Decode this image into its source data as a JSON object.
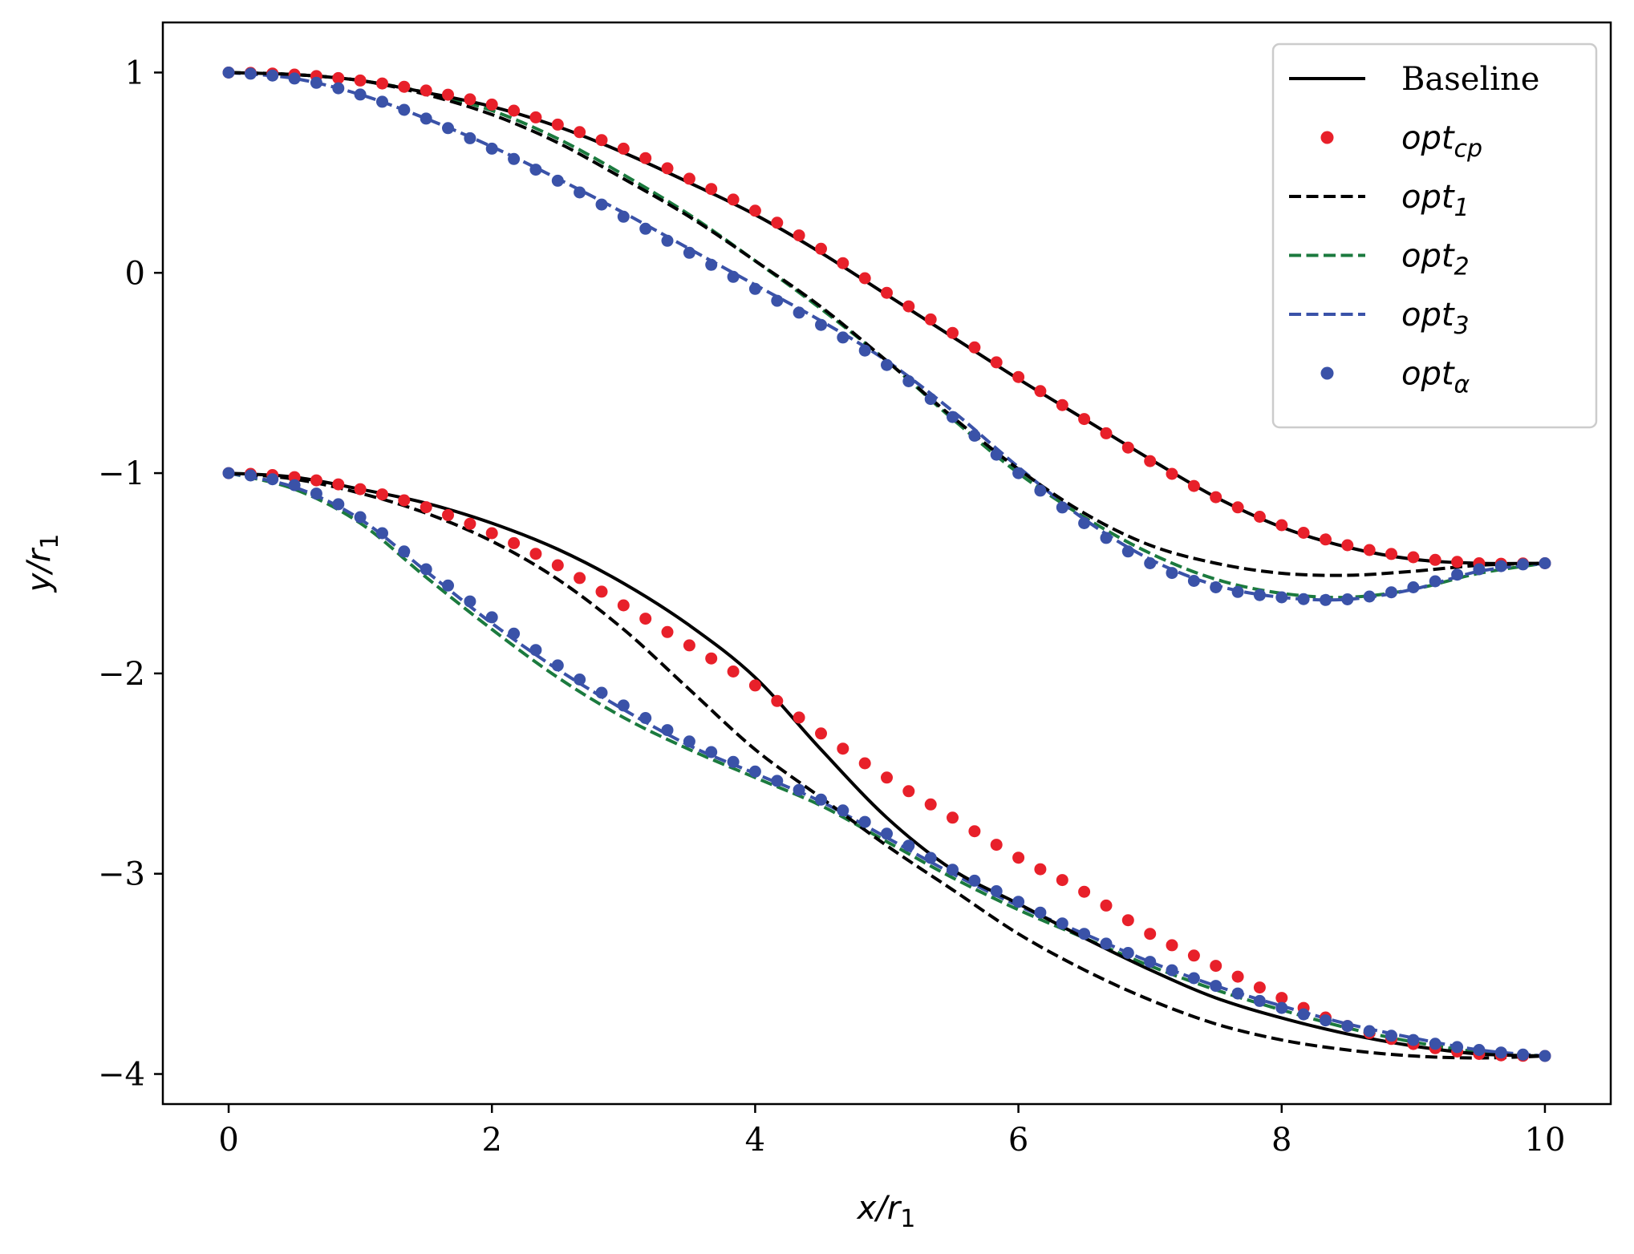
{
  "chart_data": {
    "type": "line",
    "title": "",
    "xlabel": "x/r",
    "xlabel_sub": "1",
    "ylabel": "y/r",
    "ylabel_sub": "1",
    "xlim": [
      -0.5,
      10.5
    ],
    "ylim": [
      -4.15,
      1.25
    ],
    "xticks": [
      0,
      2,
      4,
      6,
      8,
      10
    ],
    "xtick_labels": [
      "0",
      "2",
      "4",
      "6",
      "8",
      "10"
    ],
    "yticks": [
      1,
      0,
      -1,
      -2,
      -3,
      -4
    ],
    "ytick_labels": [
      "1",
      "0",
      "−1",
      "−2",
      "−3",
      "−4"
    ],
    "grid": false,
    "legend_position": "top-right",
    "colors": {
      "baseline": "#000000",
      "opt_cp": "#e8202a",
      "opt1": "#000000",
      "opt2": "#1b7a3e",
      "opt3": "#3a52a8",
      "opt_alpha": "#3a52a8"
    },
    "series": [
      {
        "key": "baseline",
        "name": "Baseline",
        "style": "solid",
        "label_font": "serif",
        "upper": {
          "x": [
            0,
            0.5,
            1,
            1.5,
            2,
            2.5,
            3,
            3.5,
            4,
            4.5,
            5,
            5.5,
            6,
            6.5,
            7,
            7.5,
            8,
            8.5,
            9,
            9.5,
            10
          ],
          "y": [
            1,
            0.99,
            0.96,
            0.9,
            0.83,
            0.73,
            0.6,
            0.45,
            0.29,
            0.1,
            -0.11,
            -0.32,
            -0.53,
            -0.73,
            -0.93,
            -1.12,
            -1.27,
            -1.37,
            -1.43,
            -1.45,
            -1.45
          ]
        },
        "lower": {
          "x": [
            0,
            0.5,
            1,
            1.5,
            2,
            2.5,
            3,
            3.5,
            4,
            4.5,
            5,
            5.5,
            6,
            6.5,
            7,
            7.5,
            8,
            8.5,
            9,
            9.5,
            10
          ],
          "y": [
            -1,
            -1.02,
            -1.08,
            -1.15,
            -1.25,
            -1.38,
            -1.55,
            -1.76,
            -2.02,
            -2.38,
            -2.72,
            -2.98,
            -3.15,
            -3.32,
            -3.48,
            -3.62,
            -3.72,
            -3.8,
            -3.86,
            -3.9,
            -3.91
          ]
        }
      },
      {
        "key": "opt_cp",
        "name": "opt",
        "sub": "cp",
        "style": "dots",
        "label_font": "math",
        "upper": {
          "x": [
            0,
            0.5,
            1,
            1.5,
            2,
            2.5,
            3,
            3.5,
            4,
            4.5,
            5,
            5.5,
            6,
            6.5,
            7,
            7.5,
            8,
            8.5,
            9,
            9.5,
            10
          ],
          "y": [
            1,
            0.99,
            0.96,
            0.91,
            0.84,
            0.74,
            0.62,
            0.47,
            0.31,
            0.12,
            -0.1,
            -0.3,
            -0.52,
            -0.73,
            -0.94,
            -1.12,
            -1.26,
            -1.36,
            -1.42,
            -1.45,
            -1.45
          ]
        },
        "lower": {
          "x": [
            0,
            0.5,
            1,
            1.5,
            2,
            2.5,
            3,
            3.5,
            4,
            4.5,
            5,
            5.5,
            6,
            6.5,
            7,
            7.5,
            8,
            8.5,
            9,
            9.5,
            10
          ],
          "y": [
            -1,
            -1.02,
            -1.08,
            -1.17,
            -1.3,
            -1.46,
            -1.66,
            -1.86,
            -2.06,
            -2.3,
            -2.52,
            -2.72,
            -2.92,
            -3.09,
            -3.3,
            -3.46,
            -3.62,
            -3.76,
            -3.85,
            -3.9,
            -3.91
          ]
        }
      },
      {
        "key": "opt1",
        "name": "opt",
        "sub": "1",
        "style": "dashed",
        "label_font": "math",
        "upper": {
          "x": [
            0,
            0.5,
            1,
            1.5,
            2,
            2.5,
            3,
            3.5,
            4,
            4.5,
            5,
            5.5,
            6,
            6.5,
            7,
            7.5,
            8,
            8.5,
            9,
            9.5,
            10
          ],
          "y": [
            1,
            0.99,
            0.96,
            0.89,
            0.79,
            0.65,
            0.47,
            0.28,
            0.06,
            -0.17,
            -0.44,
            -0.72,
            -0.98,
            -1.2,
            -1.36,
            -1.45,
            -1.5,
            -1.51,
            -1.49,
            -1.46,
            -1.45
          ]
        },
        "lower": {
          "x": [
            0,
            0.5,
            1,
            1.5,
            2,
            2.5,
            3,
            3.5,
            4,
            4.5,
            5,
            5.5,
            6,
            6.5,
            7,
            7.5,
            8,
            8.5,
            9,
            9.5,
            10
          ],
          "y": [
            -1,
            -1.03,
            -1.1,
            -1.2,
            -1.34,
            -1.53,
            -1.78,
            -2.08,
            -2.38,
            -2.62,
            -2.86,
            -3.08,
            -3.3,
            -3.48,
            -3.63,
            -3.75,
            -3.83,
            -3.88,
            -3.91,
            -3.92,
            -3.91
          ]
        }
      },
      {
        "key": "opt2",
        "name": "opt",
        "sub": "2",
        "style": "dashed",
        "label_font": "math",
        "upper": {
          "x": [
            0,
            0.5,
            1,
            1.5,
            2,
            2.5,
            3,
            3.5,
            4,
            4.5,
            5,
            5.5,
            6,
            6.5,
            7,
            7.5,
            8,
            8.5,
            9,
            9.5,
            10
          ],
          "y": [
            1,
            0.99,
            0.96,
            0.9,
            0.81,
            0.67,
            0.49,
            0.29,
            0.06,
            -0.18,
            -0.44,
            -0.73,
            -1.0,
            -1.22,
            -1.4,
            -1.53,
            -1.6,
            -1.62,
            -1.58,
            -1.5,
            -1.45
          ]
        },
        "lower": {
          "x": [
            0,
            0.5,
            1,
            1.5,
            2,
            2.5,
            3,
            3.5,
            4,
            4.5,
            5,
            5.5,
            6,
            6.5,
            7,
            7.5,
            8,
            8.5,
            9,
            9.5,
            10
          ],
          "y": [
            -1,
            -1.08,
            -1.25,
            -1.52,
            -1.78,
            -2.02,
            -2.22,
            -2.38,
            -2.52,
            -2.66,
            -2.84,
            -3.02,
            -3.18,
            -3.32,
            -3.46,
            -3.58,
            -3.68,
            -3.77,
            -3.84,
            -3.89,
            -3.91
          ]
        }
      },
      {
        "key": "opt3",
        "name": "opt",
        "sub": "3",
        "style": "dashed",
        "label_font": "math",
        "upper": {
          "x": [
            0,
            0.5,
            1,
            1.5,
            2,
            2.5,
            3,
            3.5,
            4,
            4.5,
            5,
            5.5,
            6,
            6.5,
            7,
            7.5,
            8,
            8.5,
            9,
            9.5,
            10
          ],
          "y": [
            1,
            0.97,
            0.89,
            0.77,
            0.63,
            0.47,
            0.3,
            0.12,
            -0.06,
            -0.24,
            -0.44,
            -0.69,
            -0.97,
            -1.23,
            -1.43,
            -1.56,
            -1.62,
            -1.63,
            -1.58,
            -1.49,
            -1.45
          ]
        },
        "lower": {
          "x": [
            0,
            0.5,
            1,
            1.5,
            2,
            2.5,
            3,
            3.5,
            4,
            4.5,
            5,
            5.5,
            6,
            6.5,
            7,
            7.5,
            8,
            8.5,
            9,
            9.5,
            10
          ],
          "y": [
            -1,
            -1.07,
            -1.23,
            -1.49,
            -1.75,
            -1.98,
            -2.18,
            -2.36,
            -2.5,
            -2.64,
            -2.82,
            -3.0,
            -3.16,
            -3.3,
            -3.44,
            -3.56,
            -3.66,
            -3.75,
            -3.82,
            -3.88,
            -3.91
          ]
        }
      },
      {
        "key": "opt_alpha",
        "name": "opt",
        "sub": "α",
        "style": "dots",
        "label_font": "math",
        "upper": {
          "x": [
            0,
            0.5,
            1,
            1.5,
            2,
            2.5,
            3,
            3.5,
            4,
            4.5,
            5,
            5.5,
            6,
            6.5,
            7,
            7.5,
            8,
            8.5,
            9,
            9.5,
            10
          ],
          "y": [
            1,
            0.97,
            0.89,
            0.77,
            0.62,
            0.46,
            0.28,
            0.1,
            -0.08,
            -0.26,
            -0.46,
            -0.72,
            -1.0,
            -1.25,
            -1.45,
            -1.57,
            -1.62,
            -1.63,
            -1.57,
            -1.48,
            -1.45
          ]
        },
        "lower": {
          "x": [
            0,
            0.5,
            1,
            1.5,
            2,
            2.5,
            3,
            3.5,
            4,
            4.5,
            5,
            5.5,
            6,
            6.5,
            7,
            7.5,
            8,
            8.5,
            9,
            9.5,
            10
          ],
          "y": [
            -1,
            -1.06,
            -1.22,
            -1.48,
            -1.72,
            -1.96,
            -2.16,
            -2.34,
            -2.49,
            -2.63,
            -2.8,
            -2.98,
            -3.14,
            -3.3,
            -3.44,
            -3.56,
            -3.67,
            -3.76,
            -3.83,
            -3.88,
            -3.91
          ]
        }
      }
    ]
  }
}
